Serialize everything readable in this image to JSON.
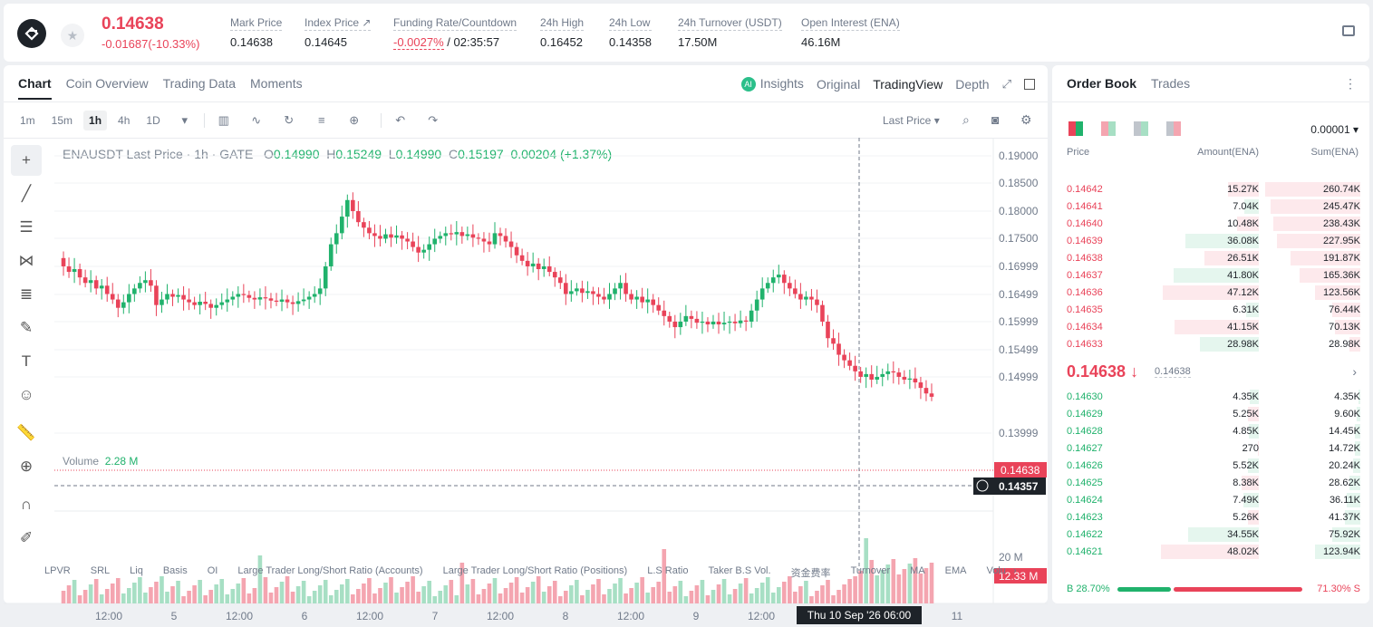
{
  "ticker": {
    "price": "0.14638",
    "change": "-0.01687(-10.33%)",
    "stats": [
      {
        "label": "Mark Price",
        "value": "0.14638"
      },
      {
        "label": "Index Price ↗",
        "value": "0.14645"
      },
      {
        "label": "Funding Rate/Countdown",
        "value_red": "-0.0027%",
        "value": " / 02:35:57"
      },
      {
        "label": "24h High",
        "value": "0.16452"
      },
      {
        "label": "24h Low",
        "value": "0.14358"
      },
      {
        "label": "24h Turnover (USDT)",
        "value": "17.50M"
      },
      {
        "label": "Open Interest (ENA)",
        "value": "46.16M"
      }
    ]
  },
  "chart_tabs": [
    "Chart",
    "Coin Overview",
    "Trading Data",
    "Moments"
  ],
  "view_tabs": {
    "insights": "Insights",
    "original": "Original",
    "tradingview": "TradingView",
    "depth": "Depth",
    "ai": "AI"
  },
  "timeframes": [
    "1m",
    "15m",
    "1h",
    "4h",
    "1D"
  ],
  "last_price_select": "Last Price ▾",
  "legend": {
    "symbol": "ENAUSDT Last Price · 1h · GATE",
    "o_label": "O",
    "o": "0.14990",
    "h_label": "H",
    "h": "0.15249",
    "l_label": "L",
    "l": "0.14990",
    "c_label": "C",
    "c": "0.15197",
    "chg": "0.00204 (+1.37%)"
  },
  "y_ticks": [
    "0.19000",
    "0.18500",
    "0.18000",
    "0.17500",
    "0.16999",
    "0.16499",
    "0.15999",
    "0.15499",
    "0.14999",
    "0.13999"
  ],
  "price_tag": "0.14638",
  "cross_tag": "0.14357",
  "volume": {
    "label": "Volume",
    "value": "2.28 M",
    "axis": "20 M",
    "tag": "12.33 M"
  },
  "x_ticks": [
    "12:00",
    "5",
    "12:00",
    "6",
    "12:00",
    "7",
    "12:00",
    "8",
    "12:00",
    "9",
    "12:00",
    "11"
  ],
  "crosshair_time": "Thu 10 Sep '26   06:00",
  "indicators": [
    "LPVR",
    "SRL",
    "Liq",
    "Basis",
    "OI",
    "Large Trader Long/Short Ratio (Accounts)",
    "Large Trader Long/Short Ratio (Positions)",
    "L.S Ratio",
    "Taker B.S Vol.",
    "资金费率",
    "Turnover",
    "MA",
    "EMA",
    "Volu"
  ],
  "orderbook": {
    "tabs": [
      "Order Book",
      "Trades"
    ],
    "precision": "0.00001 ▾",
    "headers": [
      "Price",
      "Amount(ENA)",
      "Sum(ENA)"
    ],
    "asks": [
      {
        "p": "0.14642",
        "a": "15.27K",
        "s": "260.74K"
      },
      {
        "p": "0.14641",
        "a": "7.04K",
        "s": "245.47K"
      },
      {
        "p": "0.14640",
        "a": "10.48K",
        "s": "238.43K"
      },
      {
        "p": "0.14639",
        "a": "36.08K",
        "s": "227.95K"
      },
      {
        "p": "0.14638",
        "a": "26.51K",
        "s": "191.87K"
      },
      {
        "p": "0.14637",
        "a": "41.80K",
        "s": "165.36K"
      },
      {
        "p": "0.14636",
        "a": "47.12K",
        "s": "123.56K"
      },
      {
        "p": "0.14635",
        "a": "6.31K",
        "s": "76.44K"
      },
      {
        "p": "0.14634",
        "a": "41.15K",
        "s": "70.13K"
      },
      {
        "p": "0.14633",
        "a": "28.98K",
        "s": "28.98K"
      }
    ],
    "mid": "0.14638 ↓",
    "mid_mark": "0.14638",
    "bids": [
      {
        "p": "0.14630",
        "a": "4.35K",
        "s": "4.35K"
      },
      {
        "p": "0.14629",
        "a": "5.25K",
        "s": "9.60K"
      },
      {
        "p": "0.14628",
        "a": "4.85K",
        "s": "14.45K"
      },
      {
        "p": "0.14627",
        "a": "270",
        "s": "14.72K"
      },
      {
        "p": "0.14626",
        "a": "5.52K",
        "s": "20.24K"
      },
      {
        "p": "0.14625",
        "a": "8.38K",
        "s": "28.62K"
      },
      {
        "p": "0.14624",
        "a": "7.49K",
        "s": "36.11K"
      },
      {
        "p": "0.14623",
        "a": "5.26K",
        "s": "41.37K"
      },
      {
        "p": "0.14622",
        "a": "34.55K",
        "s": "75.92K"
      },
      {
        "p": "0.14621",
        "a": "48.02K",
        "s": "123.94K"
      }
    ],
    "buy_label": "B 28.70%",
    "sell_label": "71.30% S",
    "buy_ratio": 0.287
  },
  "colors": {
    "up": "#20b26c",
    "down": "#e94359"
  }
}
